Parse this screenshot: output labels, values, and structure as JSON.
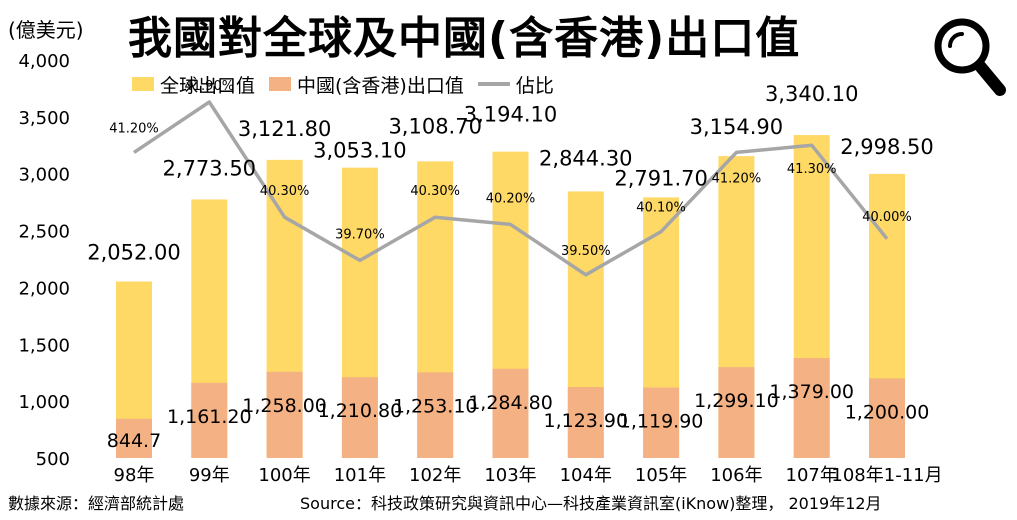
{
  "header": {
    "unit": "(億美元)",
    "title": "我國對全球及中國(含香港)出口值"
  },
  "icons": {
    "search": "search-icon"
  },
  "colors": {
    "global": "#FFD966",
    "china": "#F4B183",
    "ratio": "#A6A6A6"
  },
  "footer": {
    "source_left": "數據來源：經濟部統計處",
    "source_right": "Source：科技政策研究與資訊中心—科技產業資訊室(iKnow)整理， 2019年12月"
  },
  "chart_data": {
    "type": "bar",
    "categories": [
      "98年",
      "99年",
      "100年",
      "101年",
      "102年",
      "103年",
      "104年",
      "105年",
      "106年",
      "107年",
      "108年1-11月"
    ],
    "series": [
      {
        "name": "全球出口值",
        "values": [
          2052.0,
          2773.5,
          3121.8,
          3053.1,
          3108.7,
          3194.1,
          2844.3,
          2791.7,
          3154.9,
          3340.1,
          2998.5
        ],
        "labels": [
          "2,052.00",
          "2,773.50",
          "3,121.80",
          "3,053.10",
          "3,108.70",
          "3,194.10",
          "2,844.30",
          "2,791.70",
          "3,154.90",
          "3,340.10",
          "2,998.50"
        ]
      },
      {
        "name": "中國(含香港)出口值",
        "values": [
          844.7,
          1161.2,
          1258.0,
          1210.8,
          1253.1,
          1284.8,
          1123.9,
          1119.9,
          1299.1,
          1379.0,
          1200.0
        ],
        "labels": [
          "844.7",
          "1,161.20",
          "1,258.00",
          "1,210.80",
          "1,253.10",
          "1,284.80",
          "1,123.90",
          "1,119.90",
          "1,299.10",
          "1,379.00",
          "1,200.00"
        ]
      },
      {
        "name": "佔比",
        "values": [
          41.2,
          41.9,
          40.3,
          39.7,
          40.3,
          40.2,
          39.5,
          40.1,
          41.2,
          41.3,
          40.0
        ],
        "labels": [
          "41.20%",
          "41.90%",
          "40.30%",
          "39.70%",
          "40.30%",
          "40.20%",
          "39.50%",
          "40.10%",
          "41.20%",
          "41.30%",
          "40.00%"
        ]
      }
    ],
    "ylim": [
      500,
      4000
    ],
    "yticks": [
      500,
      1000,
      1500,
      2000,
      2500,
      3000,
      3500,
      4000
    ],
    "ytick_labels": [
      "500",
      "1,000",
      "1,500",
      "2,000",
      "2,500",
      "3,000",
      "3,500",
      "4,000"
    ],
    "legend": "top",
    "grid": false
  }
}
